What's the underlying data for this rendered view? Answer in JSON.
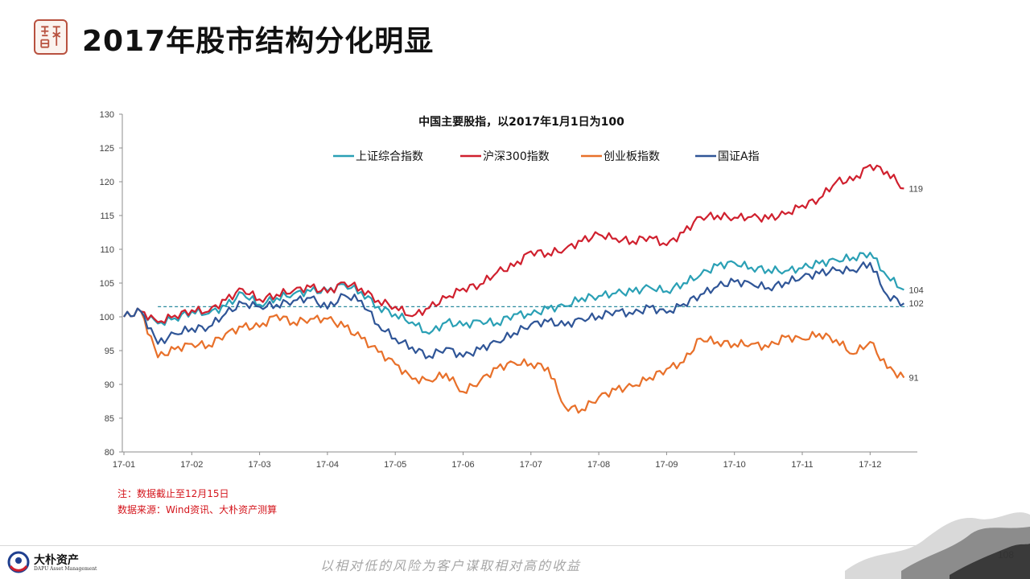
{
  "header": {
    "title": "2017年股市结构分化明显"
  },
  "notes": {
    "note": "注：数据截止至12月15日",
    "source": "数据来源：Wind资讯、大朴资产测算"
  },
  "footer": {
    "logo_name": "大朴资产",
    "logo_sub": "DAPU Asset Management",
    "slogan": "以相对低的风险为客户谋取相对高的收益",
    "page_number": "108"
  },
  "colors": {
    "shanghai": "#2aa0b5",
    "hs300": "#d0202e",
    "chinext": "#e8702a",
    "guozheng": "#2f5597",
    "reference": "#2a8a9e",
    "seal": "#b8513f"
  },
  "chart_data": {
    "type": "line",
    "title": "中国主要股指，以2017年1月1日为100",
    "ylim": [
      80,
      130
    ],
    "yticks": [
      80,
      85,
      90,
      95,
      100,
      105,
      110,
      115,
      120,
      125,
      130
    ],
    "x_tick_labels": [
      "17-01",
      "17-02",
      "17-03",
      "17-04",
      "17-05",
      "17-06",
      "17-07",
      "17-08",
      "17-09",
      "17-10",
      "17-11",
      "17-12"
    ],
    "legend_position": "top",
    "reference_line": {
      "y": 101.5,
      "style": "dashed"
    },
    "x_months": [
      0.0,
      0.25,
      0.5,
      0.75,
      1.0,
      1.25,
      1.5,
      1.75,
      2.0,
      2.25,
      2.5,
      2.75,
      3.0,
      3.25,
      3.5,
      3.75,
      4.0,
      4.25,
      4.5,
      4.75,
      5.0,
      5.25,
      5.5,
      5.75,
      6.0,
      6.25,
      6.5,
      6.75,
      7.0,
      7.25,
      7.5,
      7.75,
      8.0,
      8.25,
      8.5,
      8.75,
      9.0,
      9.25,
      9.5,
      9.75,
      10.0,
      10.25,
      10.5,
      10.75,
      11.0,
      11.25,
      11.5
    ],
    "series": [
      {
        "name": "上证综合指数",
        "color_key": "shanghai",
        "end_label": "104",
        "values": [
          100,
          100.8,
          99,
          99.8,
          100.8,
          100.5,
          101.6,
          103.5,
          101.8,
          102.8,
          103.4,
          103.8,
          103.8,
          104.8,
          103.7,
          101.5,
          100.4,
          99.2,
          97.5,
          99.2,
          98.7,
          99.4,
          99.1,
          100.4,
          100.3,
          101.2,
          101.6,
          102.8,
          103.1,
          103.5,
          103.7,
          104.4,
          103.8,
          105,
          106.2,
          107.6,
          108,
          107.3,
          107,
          106.8,
          107.2,
          107.9,
          108.4,
          108.8,
          109.5,
          106,
          104
        ]
      },
      {
        "name": "沪深300指数",
        "color_key": "hs300",
        "end_label": "119",
        "values": [
          100,
          100.8,
          99.2,
          100.2,
          101,
          100.8,
          102.5,
          104.1,
          102.6,
          103.3,
          103.9,
          104.4,
          103.6,
          105.1,
          104.2,
          102.4,
          101.5,
          100.1,
          101.3,
          102.8,
          104.2,
          104.8,
          106.6,
          107.5,
          109.7,
          109.4,
          110,
          111.2,
          112.2,
          111.6,
          111.2,
          111.9,
          110.6,
          112.5,
          114.8,
          115,
          114.7,
          114.8,
          114.5,
          115.2,
          116.5,
          117.5,
          120,
          120.2,
          122.5,
          121.5,
          119
        ]
      },
      {
        "name": "创业板指数",
        "color_key": "chinext",
        "end_label": "91",
        "values": [
          100,
          100.8,
          94,
          95.2,
          96,
          95.8,
          97.5,
          98.5,
          98.5,
          100.3,
          99.2,
          99.7,
          99.7,
          98.5,
          96.8,
          94.8,
          93,
          90.8,
          90.6,
          91.6,
          88.9,
          90.5,
          92.4,
          93.2,
          93.1,
          92.5,
          86.7,
          86.3,
          88.1,
          89.2,
          89.7,
          91,
          92.3,
          93.3,
          96.8,
          96.3,
          96,
          96,
          95.5,
          97,
          96.7,
          97.5,
          96.6,
          94.5,
          96.3,
          92.4,
          91
        ]
      },
      {
        "name": "国证A指",
        "color_key": "guozheng",
        "end_label": "102",
        "values": [
          100,
          100.8,
          96,
          97.5,
          98.3,
          98.5,
          100.5,
          102,
          101.5,
          101.8,
          102.4,
          102.8,
          101.2,
          103.2,
          102.4,
          98.8,
          96.8,
          95.5,
          94.2,
          95.4,
          94.1,
          95.2,
          96.3,
          97.6,
          98.9,
          99.3,
          98.7,
          99.7,
          100.1,
          100.9,
          100.4,
          101.4,
          100.6,
          101.9,
          103.3,
          104.5,
          105.2,
          104.9,
          104.3,
          105.1,
          105.9,
          106.4,
          106.9,
          106.9,
          108,
          103.2,
          102
        ]
      }
    ]
  }
}
